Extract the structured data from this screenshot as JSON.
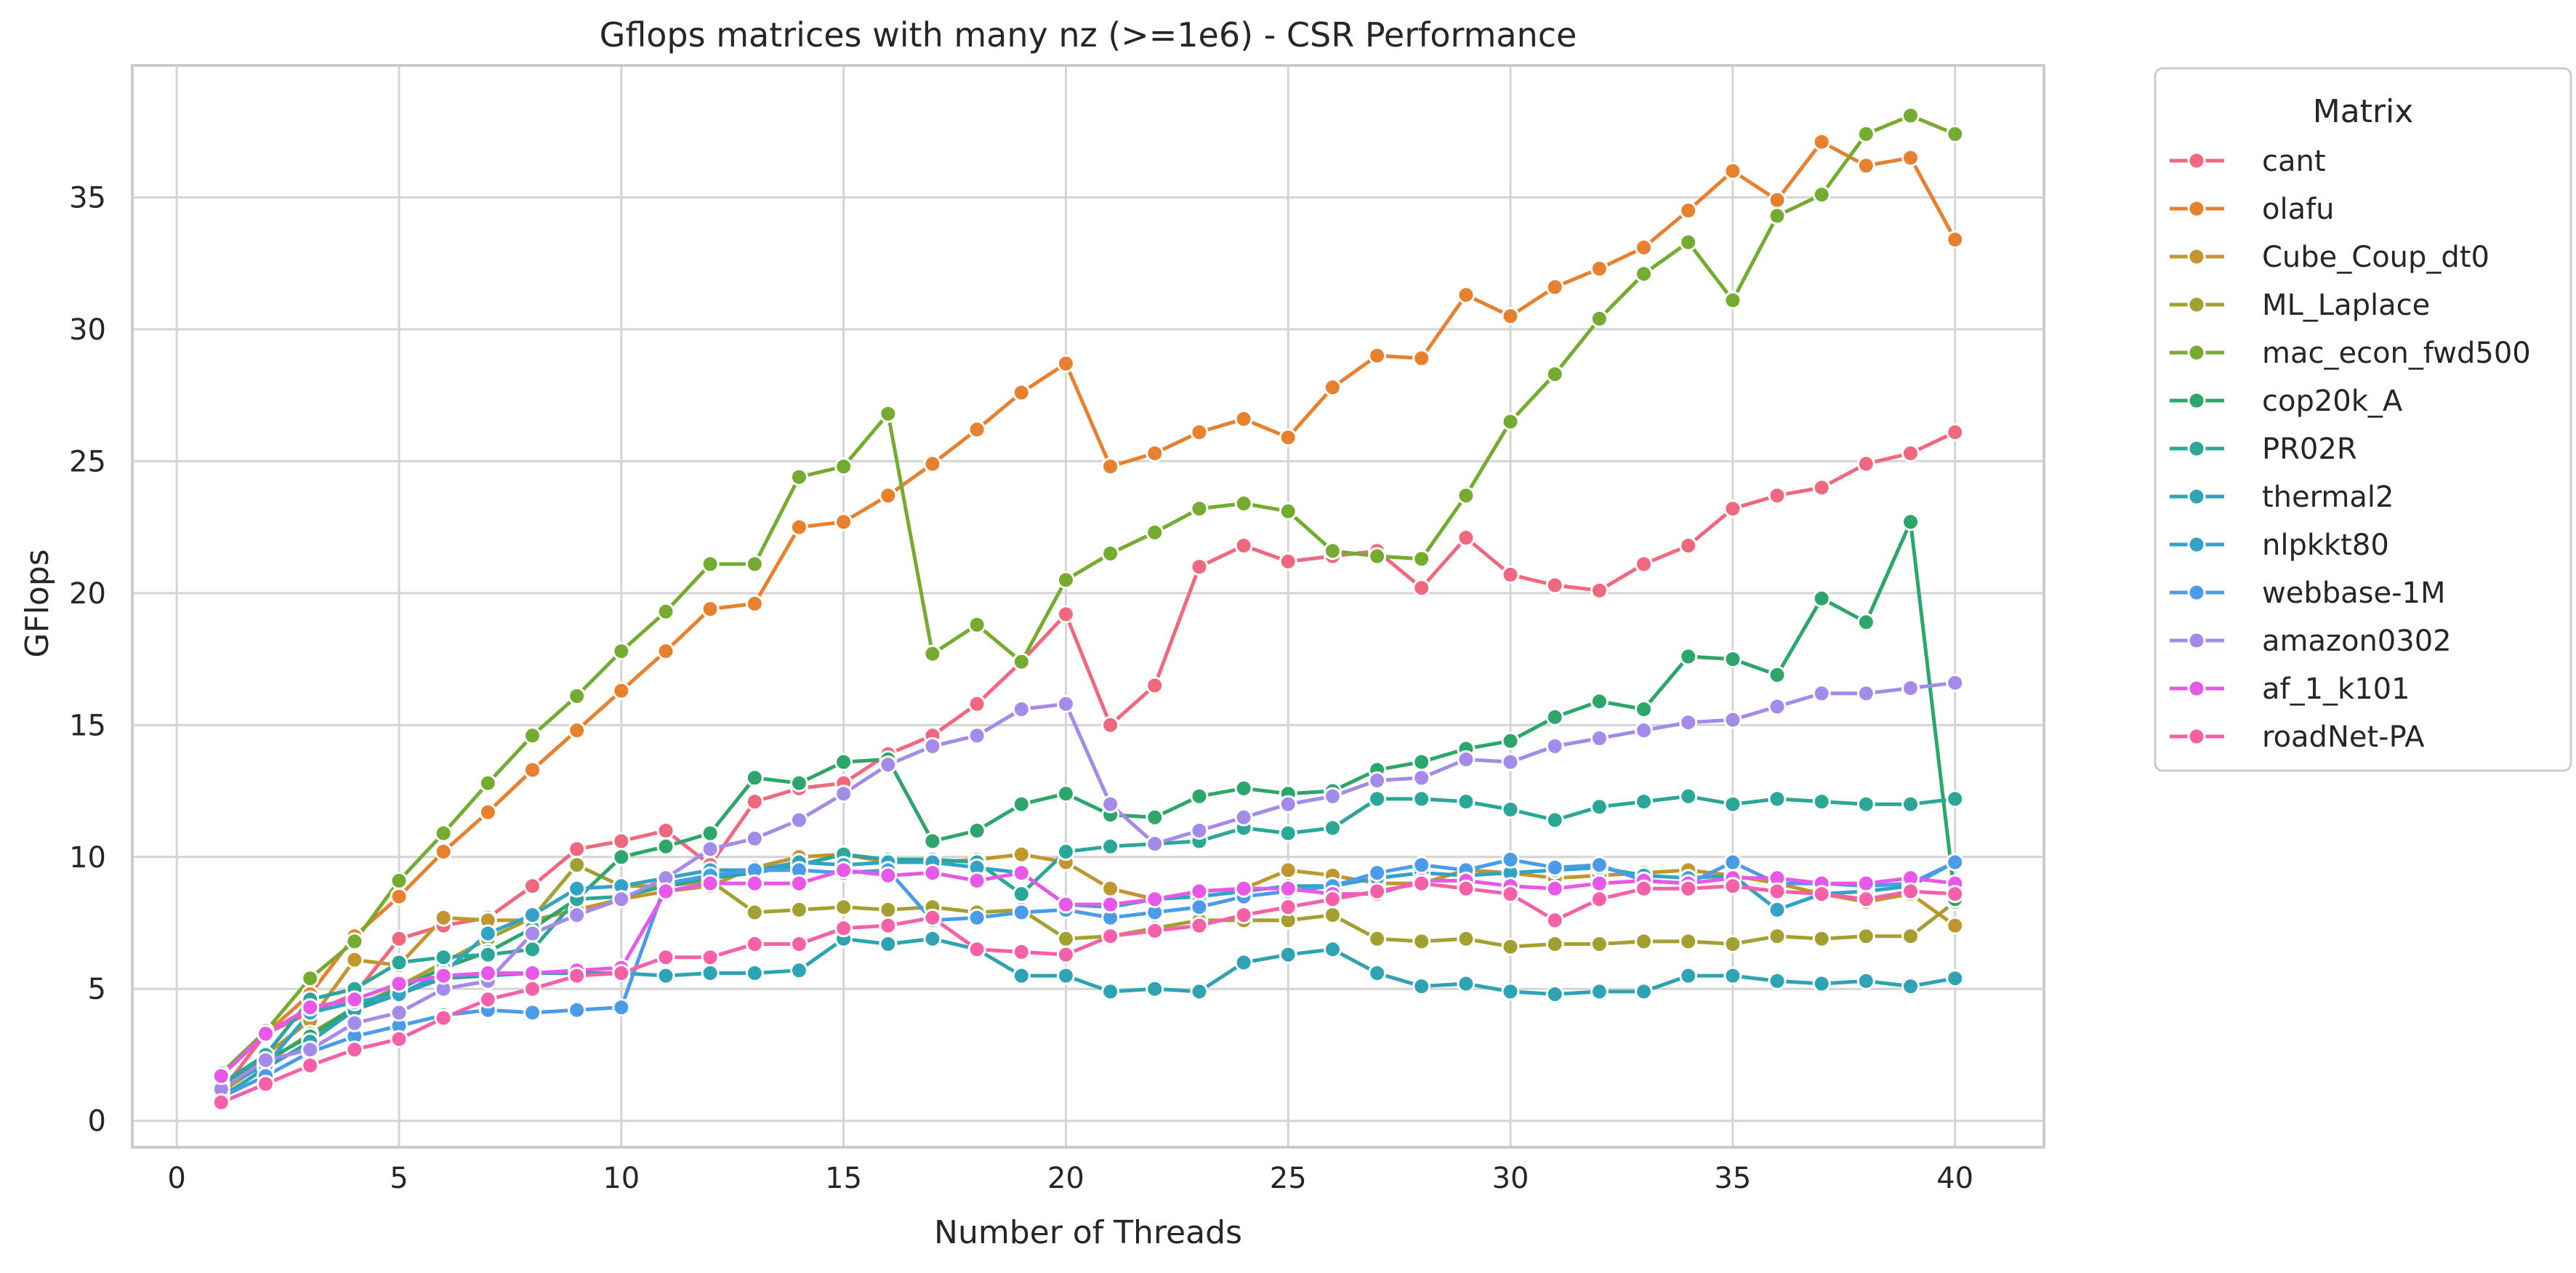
{
  "chart_data": {
    "type": "line",
    "title": "Gflops matrices with many nz (>=1e6) - CSR Performance",
    "xlabel": "Number of Threads",
    "ylabel": "GFlops",
    "xlim": [
      -1,
      42
    ],
    "ylim": [
      -1,
      40
    ],
    "xticks": [
      0,
      5,
      10,
      15,
      20,
      25,
      30,
      35,
      40
    ],
    "yticks": [
      0,
      5,
      10,
      15,
      20,
      25,
      30,
      35
    ],
    "grid": true,
    "legend_title": "Matrix",
    "legend_position": "outside-right",
    "x": [
      1,
      2,
      3,
      4,
      5,
      6,
      7,
      8,
      9,
      10,
      11,
      12,
      13,
      14,
      15,
      16,
      17,
      18,
      19,
      20,
      21,
      22,
      23,
      24,
      25,
      26,
      27,
      28,
      29,
      30,
      31,
      32,
      33,
      34,
      35,
      36,
      37,
      38,
      39,
      40
    ],
    "series": [
      {
        "name": "cant",
        "color": "#f0687e",
        "values": [
          1.1,
          3.3,
          4.1,
          4.8,
          6.9,
          7.4,
          7.7,
          8.9,
          10.3,
          10.6,
          11.0,
          9.7,
          12.1,
          12.6,
          12.8,
          13.9,
          14.6,
          15.8,
          17.4,
          19.2,
          15.0,
          16.5,
          21.0,
          21.8,
          21.2,
          21.4,
          21.6,
          20.2,
          22.1,
          20.7,
          20.3,
          20.1,
          21.1,
          21.8,
          23.2,
          23.7,
          24.0,
          24.9,
          25.3,
          26.1
        ]
      },
      {
        "name": "olafu",
        "color": "#e7802f",
        "values": [
          1.7,
          3.3,
          4.8,
          7.0,
          8.5,
          10.2,
          11.7,
          13.3,
          14.8,
          16.3,
          17.8,
          19.4,
          19.6,
          22.5,
          22.7,
          23.7,
          24.9,
          26.2,
          27.6,
          28.7,
          24.8,
          25.3,
          26.1,
          26.6,
          25.9,
          27.8,
          29.0,
          28.9,
          31.3,
          30.5,
          31.6,
          32.3,
          33.1,
          34.5,
          36.0,
          34.9,
          37.1,
          36.2,
          36.5,
          33.4
        ]
      },
      {
        "name": "Cube_Coup_dt0",
        "color": "#c2962f",
        "values": [
          1.0,
          2.5,
          3.8,
          6.1,
          5.9,
          7.7,
          7.6,
          7.6,
          8.0,
          8.4,
          8.7,
          8.9,
          9.6,
          10.0,
          10.1,
          9.8,
          9.8,
          9.9,
          10.1,
          9.8,
          8.8,
          8.4,
          8.7,
          8.8,
          9.5,
          9.3,
          9.0,
          9.0,
          9.5,
          9.4,
          9.2,
          9.3,
          9.4,
          9.5,
          9.3,
          9.0,
          8.6,
          8.3,
          8.6,
          7.4
        ]
      },
      {
        "name": "ML_Laplace",
        "color": "#a3a02f",
        "values": [
          1.1,
          2.2,
          3.3,
          4.3,
          5.1,
          6.0,
          6.9,
          7.7,
          9.7,
          8.9,
          8.9,
          9.1,
          7.9,
          8.0,
          8.1,
          8.0,
          8.1,
          7.9,
          8.0,
          6.9,
          7.0,
          7.3,
          7.6,
          7.6,
          7.6,
          7.8,
          6.9,
          6.8,
          6.9,
          6.6,
          6.7,
          6.7,
          6.8,
          6.8,
          6.7,
          7.0,
          6.9,
          7.0,
          7.0,
          8.3
        ]
      },
      {
        "name": "mac_econ_fwd500",
        "color": "#74ab30",
        "values": [
          1.8,
          3.4,
          5.4,
          6.8,
          9.1,
          10.9,
          12.8,
          14.6,
          16.1,
          17.8,
          19.3,
          21.1,
          21.1,
          24.4,
          24.8,
          26.8,
          17.7,
          18.8,
          17.4,
          20.5,
          21.5,
          22.3,
          23.2,
          23.4,
          23.1,
          21.6,
          21.4,
          21.3,
          23.7,
          26.5,
          28.3,
          30.4,
          32.1,
          33.3,
          31.1,
          34.3,
          35.1,
          37.4,
          38.1,
          37.4
        ]
      },
      {
        "name": "cop20k_A",
        "color": "#2ca66b",
        "values": [
          1.3,
          2.3,
          3.2,
          4.3,
          5.0,
          5.8,
          6.4,
          7.3,
          8.4,
          10.0,
          10.4,
          10.9,
          13.0,
          12.8,
          13.6,
          13.7,
          10.6,
          11.0,
          12.0,
          12.4,
          11.6,
          11.5,
          12.3,
          12.6,
          12.4,
          12.5,
          13.3,
          13.6,
          14.1,
          14.4,
          15.3,
          15.9,
          15.6,
          17.6,
          17.5,
          16.9,
          19.8,
          18.9,
          22.7,
          8.4
        ]
      },
      {
        "name": "PR02R",
        "color": "#2aa797",
        "values": [
          1.4,
          2.5,
          4.6,
          5.0,
          6.0,
          6.2,
          6.3,
          6.5,
          8.4,
          8.5,
          8.9,
          9.2,
          9.4,
          9.7,
          10.1,
          9.9,
          9.9,
          9.8,
          8.6,
          10.2,
          10.4,
          10.5,
          10.6,
          11.1,
          10.9,
          11.1,
          12.2,
          12.2,
          12.1,
          11.8,
          11.4,
          11.9,
          12.1,
          12.3,
          12.0,
          12.2,
          12.1,
          12.0,
          12.0,
          12.2
        ]
      },
      {
        "name": "thermal2",
        "color": "#2ea3b3",
        "values": [
          0.9,
          2.0,
          3.0,
          4.2,
          4.8,
          5.4,
          5.5,
          5.6,
          5.6,
          5.6,
          5.5,
          5.6,
          5.6,
          5.7,
          6.9,
          6.7,
          6.9,
          6.5,
          5.5,
          5.5,
          4.9,
          5.0,
          4.9,
          6.0,
          6.3,
          6.5,
          5.6,
          5.1,
          5.2,
          4.9,
          4.8,
          4.9,
          4.9,
          5.5,
          5.5,
          5.3,
          5.2,
          5.3,
          5.1,
          5.4
        ]
      },
      {
        "name": "nlpkkt80",
        "color": "#32a2c5",
        "values": [
          1.3,
          2.1,
          4.1,
          4.5,
          4.8,
          5.6,
          7.1,
          7.8,
          8.8,
          8.9,
          9.2,
          9.5,
          9.5,
          9.8,
          9.7,
          9.8,
          9.8,
          9.6,
          9.4,
          8.2,
          8.1,
          8.4,
          8.5,
          8.7,
          8.9,
          8.9,
          9.2,
          9.4,
          9.3,
          9.4,
          9.5,
          9.6,
          9.3,
          9.2,
          9.3,
          8.0,
          8.6,
          8.7,
          8.9,
          9.8
        ]
      },
      {
        "name": "webbase-1M",
        "color": "#4a9be8",
        "values": [
          0.9,
          1.7,
          2.6,
          3.2,
          3.6,
          4.0,
          4.2,
          4.1,
          4.2,
          4.3,
          9.0,
          9.3,
          9.5,
          9.5,
          9.4,
          9.5,
          7.6,
          7.7,
          7.9,
          8.0,
          7.7,
          7.9,
          8.1,
          8.5,
          8.7,
          8.9,
          9.4,
          9.7,
          9.5,
          9.9,
          9.6,
          9.7,
          9.1,
          9.0,
          9.8,
          9.0,
          9.0,
          8.9,
          9.0,
          9.8
        ]
      },
      {
        "name": "amazon0302",
        "color": "#a48ae9",
        "values": [
          1.2,
          2.3,
          2.7,
          3.7,
          4.1,
          5.0,
          5.3,
          7.1,
          7.8,
          8.4,
          9.2,
          10.3,
          10.7,
          11.4,
          12.4,
          13.5,
          14.2,
          14.6,
          15.6,
          15.8,
          12.0,
          10.5,
          11.0,
          11.5,
          12.0,
          12.3,
          12.9,
          13.0,
          13.7,
          13.6,
          14.2,
          14.5,
          14.8,
          15.1,
          15.2,
          15.7,
          16.2,
          16.2,
          16.4,
          16.6
        ]
      },
      {
        "name": "af_1_k101",
        "color": "#e758e8",
        "values": [
          1.7,
          3.3,
          4.3,
          4.6,
          5.2,
          5.5,
          5.6,
          5.6,
          5.7,
          5.8,
          8.7,
          9.0,
          9.0,
          9.0,
          9.5,
          9.3,
          9.4,
          9.1,
          9.4,
          8.2,
          8.2,
          8.4,
          8.7,
          8.8,
          8.8,
          8.6,
          8.6,
          9.1,
          9.1,
          8.9,
          8.8,
          9.0,
          9.1,
          9.0,
          9.2,
          9.2,
          9.0,
          9.0,
          9.2,
          9.0
        ]
      },
      {
        "name": "roadNet-PA",
        "color": "#f561a9",
        "values": [
          0.7,
          1.4,
          2.1,
          2.7,
          3.1,
          3.9,
          4.6,
          5.0,
          5.5,
          5.6,
          6.2,
          6.2,
          6.7,
          6.7,
          7.3,
          7.4,
          7.7,
          6.5,
          6.4,
          6.3,
          7.0,
          7.2,
          7.4,
          7.8,
          8.1,
          8.4,
          8.7,
          9.0,
          8.8,
          8.6,
          7.6,
          8.4,
          8.8,
          8.8,
          8.9,
          8.7,
          8.6,
          8.4,
          8.7,
          8.6
        ]
      }
    ]
  }
}
